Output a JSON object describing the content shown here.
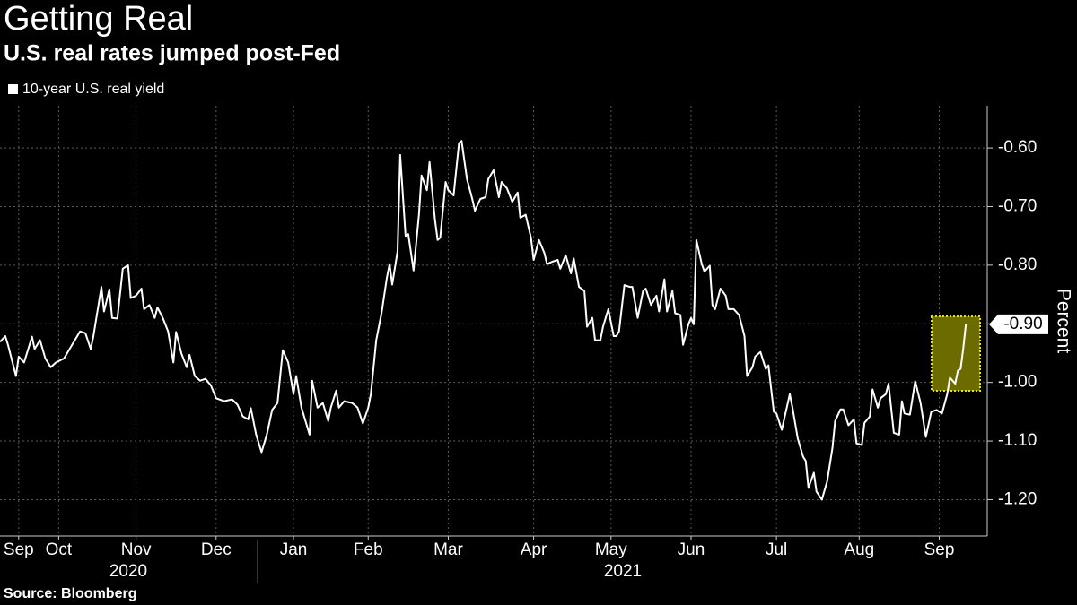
{
  "chart_data": {
    "type": "line",
    "title": "Getting Real",
    "subtitle": "U.S. real rates jumped post-Fed",
    "ylabel": "Percent",
    "source": "Source: Bloomberg",
    "year_labels": [
      "2020",
      "2021"
    ],
    "last_value_label": "-0.90",
    "legend": "top-left",
    "grid": true,
    "xlim": [
      0,
      370
    ],
    "ylim": [
      -1.262,
      -0.528
    ],
    "yticks": [
      {
        "value": -0.6,
        "label": "-0.60"
      },
      {
        "value": -0.7,
        "label": "-0.70"
      },
      {
        "value": -0.8,
        "label": "-0.80"
      },
      {
        "value": -0.9,
        "label": "-0.90"
      },
      {
        "value": -1.0,
        "label": "-1.00"
      },
      {
        "value": -1.1,
        "label": "-1.10"
      },
      {
        "value": -1.2,
        "label": "-1.20"
      }
    ],
    "xticks": [
      {
        "value": 7,
        "label": "Sep"
      },
      {
        "value": 22,
        "label": "Oct"
      },
      {
        "value": 51,
        "label": "Nov"
      },
      {
        "value": 81,
        "label": "Dec"
      },
      {
        "value": 110,
        "label": "Jan"
      },
      {
        "value": 138,
        "label": "Feb"
      },
      {
        "value": 168,
        "label": "Mar"
      },
      {
        "value": 200,
        "label": "Apr"
      },
      {
        "value": 229,
        "label": "May"
      },
      {
        "value": 259,
        "label": "Jun"
      },
      {
        "value": 291,
        "label": "Jul"
      },
      {
        "value": 322,
        "label": "Aug"
      },
      {
        "value": 352,
        "label": "Sep"
      }
    ],
    "x": [
      0,
      2,
      3,
      6,
      7,
      9,
      12,
      13,
      15,
      17,
      19,
      21,
      24,
      27,
      30,
      32,
      34,
      35,
      38,
      39,
      41,
      42,
      44,
      46,
      48,
      49,
      51,
      53,
      54,
      56,
      58,
      59,
      61,
      63,
      65,
      66,
      68,
      70,
      71,
      73,
      75,
      77,
      79,
      81,
      84,
      87,
      89,
      91,
      93,
      94,
      96,
      98,
      100,
      102,
      104,
      106,
      108,
      110,
      111,
      113,
      116,
      117,
      119,
      121,
      123,
      124,
      126,
      127,
      129,
      132,
      134,
      136,
      138,
      139,
      141,
      143,
      145,
      146,
      147,
      149,
      150,
      152,
      153,
      155,
      157,
      158,
      160,
      161,
      163,
      164,
      165,
      167,
      168,
      170,
      172,
      173,
      175,
      177,
      178,
      180,
      182,
      183,
      185,
      187,
      188,
      190,
      192,
      194,
      195,
      197,
      199,
      200,
      202,
      204,
      205,
      207,
      209,
      210,
      212,
      214,
      215,
      217,
      219,
      220,
      222,
      223,
      225,
      226,
      228,
      230,
      231,
      232,
      234,
      236,
      237,
      239,
      241,
      242,
      244,
      246,
      247,
      249,
      250,
      252,
      253,
      255,
      256,
      258,
      259,
      260,
      261,
      263,
      264,
      266,
      267,
      268,
      270,
      272,
      273,
      275,
      277,
      279,
      280,
      282,
      283,
      285,
      287,
      288,
      290,
      291,
      293,
      294,
      296,
      297,
      299,
      301,
      302,
      303,
      305,
      306,
      308,
      310,
      312,
      313,
      315,
      316,
      318,
      320,
      321,
      323,
      324,
      326,
      327,
      329,
      330,
      332,
      333,
      335,
      337,
      338,
      339,
      341,
      343,
      345,
      347,
      349,
      351,
      353,
      355,
      356,
      358,
      359,
      360,
      361,
      362
    ],
    "series": [
      {
        "name": "10-year U.S. real yield",
        "color": "#ffffff",
        "values": [
          -0.931,
          -0.921,
          -0.936,
          -0.989,
          -0.956,
          -0.966,
          -0.922,
          -0.943,
          -0.928,
          -0.959,
          -0.974,
          -0.966,
          -0.959,
          -0.936,
          -0.913,
          -0.916,
          -0.943,
          -0.921,
          -0.837,
          -0.879,
          -0.841,
          -0.89,
          -0.891,
          -0.806,
          -0.8,
          -0.856,
          -0.852,
          -0.84,
          -0.875,
          -0.868,
          -0.89,
          -0.872,
          -0.89,
          -0.913,
          -0.966,
          -0.914,
          -0.951,
          -0.974,
          -0.953,
          -0.989,
          -0.997,
          -0.994,
          -1.005,
          -1.027,
          -1.032,
          -1.029,
          -1.038,
          -1.058,
          -1.063,
          -1.044,
          -1.089,
          -1.119,
          -1.089,
          -1.047,
          -1.035,
          -0.945,
          -0.966,
          -1.02,
          -0.989,
          -1.043,
          -1.089,
          -0.997,
          -1.043,
          -1.035,
          -1.066,
          -1.043,
          -1.014,
          -1.043,
          -1.032,
          -1.035,
          -1.043,
          -1.07,
          -1.043,
          -1.02,
          -0.928,
          -0.882,
          -0.821,
          -0.798,
          -0.833,
          -0.776,
          -0.612,
          -0.75,
          -0.747,
          -0.809,
          -0.714,
          -0.647,
          -0.672,
          -0.624,
          -0.722,
          -0.757,
          -0.753,
          -0.658,
          -0.672,
          -0.681,
          -0.592,
          -0.588,
          -0.653,
          -0.687,
          -0.707,
          -0.687,
          -0.684,
          -0.653,
          -0.638,
          -0.684,
          -0.658,
          -0.669,
          -0.692,
          -0.676,
          -0.719,
          -0.714,
          -0.753,
          -0.791,
          -0.757,
          -0.779,
          -0.798,
          -0.794,
          -0.791,
          -0.806,
          -0.783,
          -0.814,
          -0.788,
          -0.837,
          -0.844,
          -0.905,
          -0.89,
          -0.928,
          -0.928,
          -0.905,
          -0.875,
          -0.921,
          -0.921,
          -0.913,
          -0.834,
          -0.837,
          -0.837,
          -0.89,
          -0.844,
          -0.84,
          -0.868,
          -0.852,
          -0.879,
          -0.824,
          -0.879,
          -0.844,
          -0.882,
          -0.885,
          -0.936,
          -0.901,
          -0.89,
          -0.901,
          -0.757,
          -0.798,
          -0.811,
          -0.801,
          -0.868,
          -0.875,
          -0.84,
          -0.852,
          -0.875,
          -0.875,
          -0.885,
          -0.921,
          -0.989,
          -0.974,
          -0.956,
          -0.948,
          -0.977,
          -0.971,
          -1.05,
          -1.053,
          -1.081,
          -1.06,
          -1.02,
          -1.043,
          -1.096,
          -1.127,
          -1.134,
          -1.18,
          -1.154,
          -1.186,
          -1.2,
          -1.169,
          -1.111,
          -1.066,
          -1.046,
          -1.046,
          -1.073,
          -1.063,
          -1.104,
          -1.107,
          -1.069,
          -1.058,
          -1.012,
          -1.043,
          -1.027,
          -1.02,
          -1.002,
          -1.086,
          -1.089,
          -1.032,
          -1.053,
          -1.055,
          -0.998,
          -1.035,
          -1.093,
          -1.05,
          -1.047,
          -1.053,
          -1.02,
          -0.992,
          -1.002,
          -0.98,
          -0.977,
          -0.943,
          -0.901
        ]
      }
    ]
  }
}
